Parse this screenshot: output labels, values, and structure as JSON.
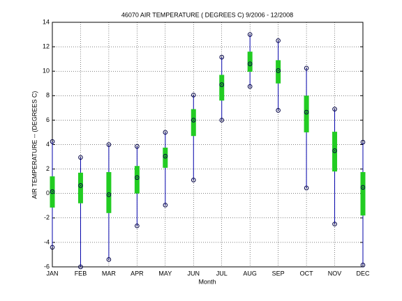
{
  "chart_data": {
    "type": "range",
    "title": "46070  AIR TEMPERATURE ( DEGREES C) 9/2006 - 12/2008",
    "x_label": "Month",
    "y_label": "AIR TEMPERATURE -- (DEGREES C)",
    "categories": [
      "JAN",
      "FEB",
      "MAR",
      "APR",
      "MAY",
      "JUN",
      "JUL",
      "AUG",
      "SEP",
      "OCT",
      "NOV",
      "DEC"
    ],
    "max": [
      4.25,
      2.95,
      4.0,
      3.85,
      5.0,
      8.05,
      11.15,
      13.0,
      12.5,
      10.25,
      6.9,
      4.2
    ],
    "min": [
      -4.4,
      -6.0,
      -5.4,
      -2.65,
      -0.95,
      1.1,
      6.0,
      8.75,
      6.8,
      0.45,
      -2.5,
      -5.85
    ],
    "mean": [
      0.15,
      0.65,
      -0.1,
      1.3,
      3.05,
      6.0,
      8.9,
      10.6,
      10.05,
      6.65,
      3.5,
      0.5
    ],
    "box_low": [
      -1.15,
      -0.8,
      -1.6,
      0.0,
      2.1,
      4.7,
      7.6,
      9.95,
      9.0,
      5.0,
      1.8,
      -1.8
    ],
    "box_high": [
      1.4,
      1.7,
      1.75,
      2.25,
      3.75,
      6.9,
      9.7,
      11.6,
      10.9,
      8.0,
      5.05,
      1.75
    ],
    "line_color": "#0000aa",
    "box_color": "#22cc22",
    "marker_color": "#000044",
    "ylim": [
      -6,
      14
    ],
    "yticks": [
      -6,
      -4,
      -2,
      0,
      2,
      4,
      6,
      8,
      10,
      12,
      14
    ],
    "grid": true
  }
}
